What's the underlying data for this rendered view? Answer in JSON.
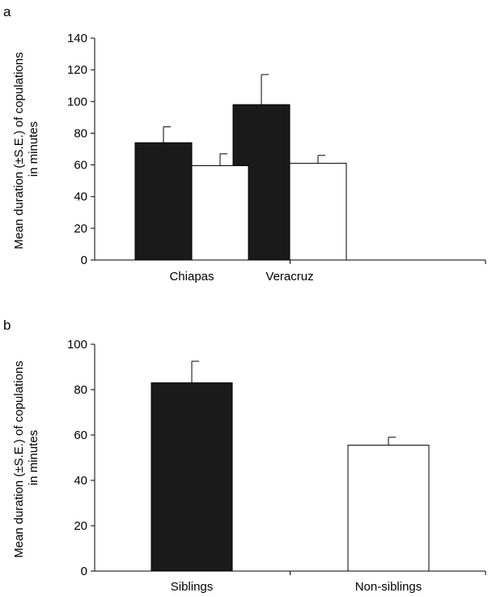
{
  "chart_data": [
    {
      "panel": "a",
      "type": "bar",
      "title": "",
      "xlabel": "",
      "ylabel_line1": "Mean duration (±S.E.) of copulations",
      "ylabel_line2": "in minutes",
      "ylim": [
        0,
        140
      ],
      "yticks": [
        0,
        20,
        40,
        60,
        80,
        100,
        120,
        140
      ],
      "categories": [
        "Chiapas",
        "Veracruz"
      ],
      "series": [
        {
          "fill": "#1a1a1a",
          "values": [
            74,
            98
          ],
          "se": [
            10,
            19
          ]
        },
        {
          "fill": "#ffffff",
          "values": [
            59.5,
            61
          ],
          "se": [
            7.5,
            5
          ]
        }
      ]
    },
    {
      "panel": "b",
      "type": "bar",
      "title": "",
      "xlabel": "",
      "ylabel_line1": "Mean duration (±S.E.) of copulations",
      "ylabel_line2": "in minutes",
      "ylim": [
        0,
        100
      ],
      "yticks": [
        0,
        20,
        40,
        60,
        80,
        100
      ],
      "categories": [
        "Siblings",
        "Non-siblings"
      ],
      "series": [
        {
          "values": [
            83,
            55.5
          ],
          "se": [
            9.5,
            3.5
          ],
          "fills": [
            "#1a1a1a",
            "#ffffff"
          ]
        }
      ]
    }
  ]
}
